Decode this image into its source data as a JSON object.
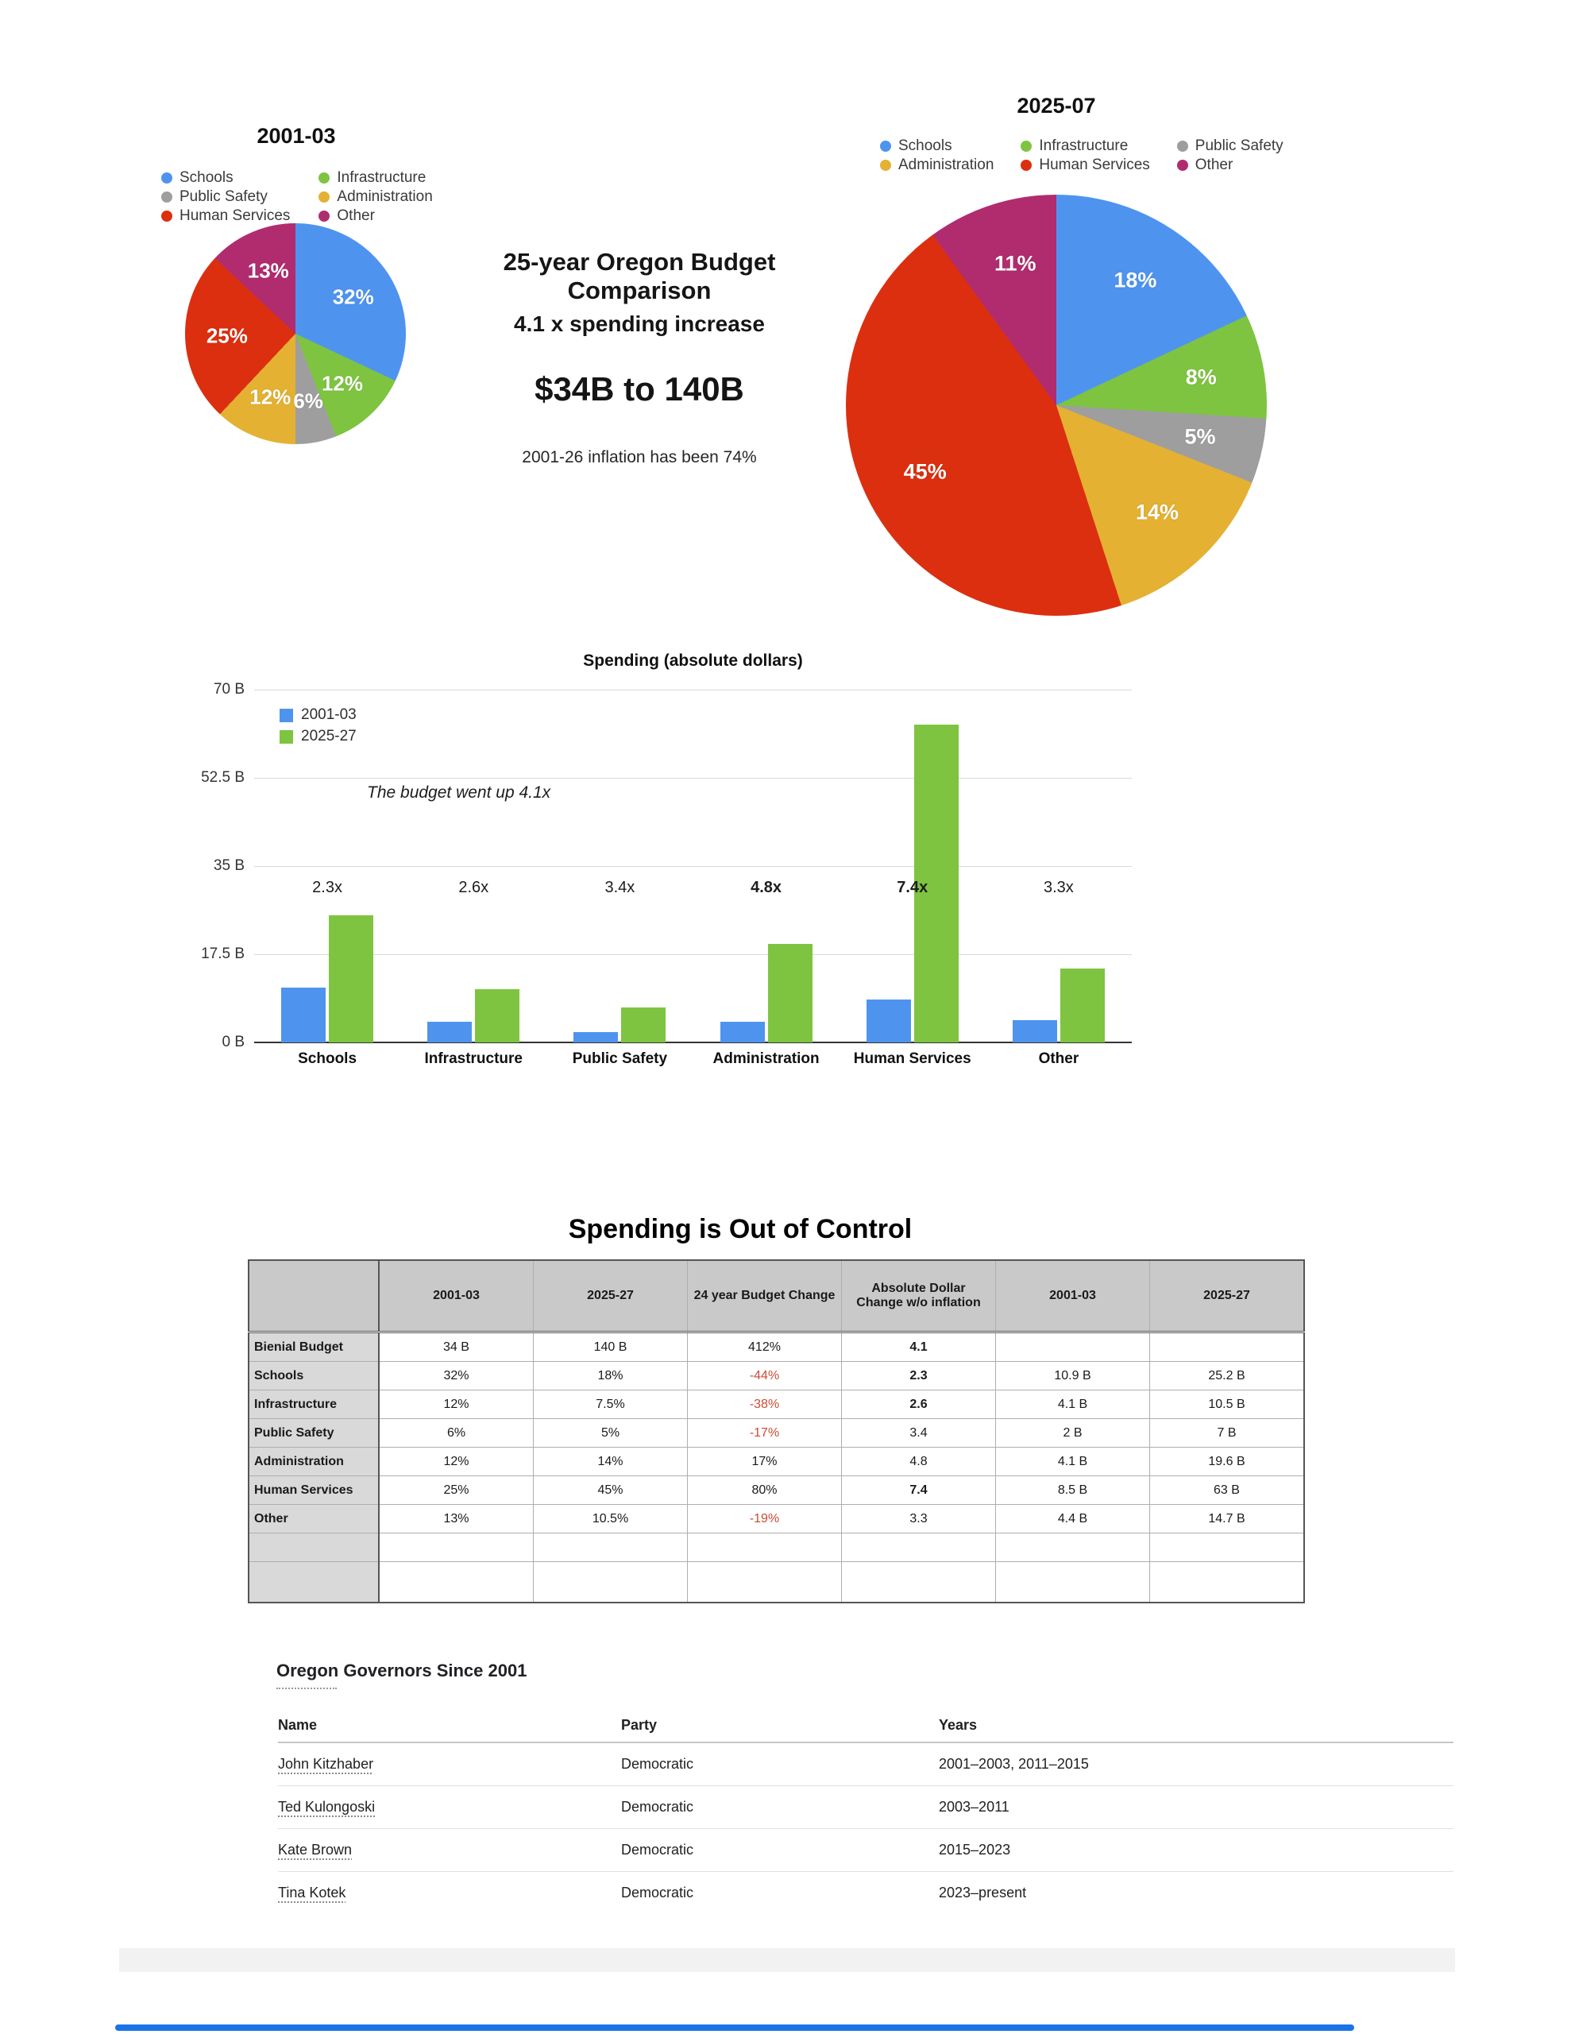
{
  "colors": {
    "schools_blue": "#4E94EF",
    "infrastructure_green": "#7EC440",
    "public_safety_gray": "#9E9E9E",
    "administration_gold": "#E4B133",
    "human_services_red": "#DC2F10",
    "other_magenta": "#B02C6F",
    "negative_text_red": "#CC4B33",
    "scrollbar_blue": "#1A73E8",
    "series_2001_blue": "#4E94EF",
    "series_2025_green": "#7EC440"
  },
  "center_text": {
    "line1": "25-year Oregon Budget Comparison",
    "line2": "4.1 x spending increase",
    "line3": "$34B to 140B",
    "line4": "2001-26 inflation has been 74%"
  },
  "chart_data": [
    {
      "type": "pie",
      "title": "2001-03",
      "categories": [
        "Schools",
        "Infrastructure",
        "Public Safety",
        "Administration",
        "Human Services",
        "Other"
      ],
      "values": [
        32,
        12,
        6,
        12,
        25,
        13
      ],
      "colors": [
        "#4E94EF",
        "#7EC440",
        "#9E9E9E",
        "#E4B133",
        "#DC2F10",
        "#B02C6F"
      ],
      "labels": [
        "32%",
        "12%",
        "6%",
        "12%",
        "25%",
        "13%"
      ],
      "legend_columns": [
        [
          "Schools",
          "Public Safety",
          "Human Services"
        ],
        [
          "Infrastructure",
          "Administration",
          "Other"
        ]
      ],
      "label_radius": 0.62
    },
    {
      "type": "pie",
      "title": "2025-07",
      "categories": [
        "Schools",
        "Infrastructure",
        "Public Safety",
        "Administration",
        "Human Services",
        "Other"
      ],
      "values": [
        18,
        8,
        5,
        14,
        45,
        11
      ],
      "colors": [
        "#4E94EF",
        "#7EC440",
        "#9E9E9E",
        "#E4B133",
        "#DC2F10",
        "#B02C6F"
      ],
      "labels": [
        "18%",
        "8%",
        "5%",
        "14%",
        "45%",
        "11%"
      ],
      "legend_columns": [
        [
          "Schools",
          "Administration"
        ],
        [
          "Infrastructure",
          "Human Services"
        ],
        [
          "Public Safety",
          "Other"
        ]
      ],
      "label_radius": 0.7
    },
    {
      "type": "bar",
      "title": "Spending (absolute dollars)",
      "categories": [
        "Schools",
        "Infrastructure",
        "Public Safety",
        "Administration",
        "Human Services",
        "Other"
      ],
      "series": [
        {
          "name": "2001-03",
          "color": "#4E94EF",
          "values": [
            10.9,
            4.1,
            2,
            4.1,
            8.5,
            4.4
          ]
        },
        {
          "name": "2025-27",
          "color": "#7EC440",
          "values": [
            25.2,
            10.5,
            7,
            19.6,
            63,
            14.7
          ]
        }
      ],
      "multipliers": [
        "2.3x",
        "2.6x",
        "3.4x",
        "4.8x",
        "7.4x",
        "3.3x"
      ],
      "multipliers_bold": [
        false,
        false,
        false,
        true,
        true,
        false
      ],
      "annotation": "The budget went up 4.1x",
      "ylabels": [
        "70 B",
        "52.5 B",
        "35 B",
        "17.5 B",
        "0 B"
      ],
      "ylim": [
        0,
        70
      ],
      "grid": true,
      "legend_position": "top-left"
    },
    {
      "type": "table",
      "title": "Spending is Out of Control",
      "headers": [
        "",
        "2001-03",
        "2025-27",
        "24 year Budget Change",
        "Absolute Dollar Change w/o inflation",
        "2001-03",
        "2025-27"
      ],
      "rows": [
        {
          "label": "Bienial Budget",
          "cells": [
            {
              "t": "34 B"
            },
            {
              "t": "140 B"
            },
            {
              "t": "412%"
            },
            {
              "t": "4.1",
              "b": true
            },
            {
              "t": ""
            },
            {
              "t": ""
            }
          ]
        },
        {
          "label": "Schools",
          "cells": [
            {
              "t": "32%"
            },
            {
              "t": "18%"
            },
            {
              "t": "-44%"
            },
            {
              "t": "2.3",
              "b": true
            },
            {
              "t": "10.9 B"
            },
            {
              "t": "25.2 B"
            }
          ]
        },
        {
          "label": "Infrastructure",
          "cells": [
            {
              "t": "12%"
            },
            {
              "t": "7.5%"
            },
            {
              "t": "-38%"
            },
            {
              "t": "2.6",
              "b": true
            },
            {
              "t": "4.1 B"
            },
            {
              "t": "10.5 B"
            }
          ]
        },
        {
          "label": "Public Safety",
          "cells": [
            {
              "t": "6%"
            },
            {
              "t": "5%"
            },
            {
              "t": "-17%"
            },
            {
              "t": "3.4"
            },
            {
              "t": "2 B"
            },
            {
              "t": "7 B"
            }
          ]
        },
        {
          "label": "Administration",
          "cells": [
            {
              "t": "12%"
            },
            {
              "t": "14%"
            },
            {
              "t": "17%"
            },
            {
              "t": "4.8"
            },
            {
              "t": "4.1 B"
            },
            {
              "t": "19.6 B"
            }
          ]
        },
        {
          "label": "Human Services",
          "cells": [
            {
              "t": "25%"
            },
            {
              "t": "45%"
            },
            {
              "t": "80%"
            },
            {
              "t": "7.4",
              "b": true
            },
            {
              "t": "8.5 B"
            },
            {
              "t": "63 B"
            }
          ]
        },
        {
          "label": "Other",
          "cells": [
            {
              "t": "13%"
            },
            {
              "t": "10.5%"
            },
            {
              "t": "-19%"
            },
            {
              "t": "3.3"
            },
            {
              "t": "4.4 B"
            },
            {
              "t": "14.7 B"
            }
          ]
        },
        {
          "label": "",
          "cells": [
            {
              "t": ""
            },
            {
              "t": ""
            },
            {
              "t": ""
            },
            {
              "t": ""
            },
            {
              "t": ""
            },
            {
              "t": ""
            }
          ]
        },
        {
          "label": "",
          "cells": [
            {
              "t": ""
            },
            {
              "t": ""
            },
            {
              "t": ""
            },
            {
              "t": ""
            },
            {
              "t": ""
            },
            {
              "t": ""
            }
          ],
          "tall": true
        }
      ]
    },
    {
      "type": "table",
      "title": "Oregon Governors Since 2001",
      "headers": [
        "Name",
        "Party",
        "Years"
      ],
      "rows": [
        [
          "John Kitzhaber",
          "Democratic",
          "2001–2003, 2011–2015"
        ],
        [
          "Ted Kulongoski",
          "Democratic",
          "2003–2011"
        ],
        [
          "Kate Brown",
          "Democratic",
          "2015–2023"
        ],
        [
          "Tina Kotek",
          "Democratic",
          "2023–present"
        ]
      ]
    }
  ]
}
